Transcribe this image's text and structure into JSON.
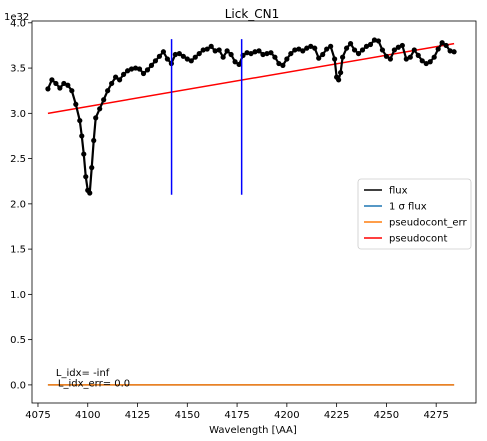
{
  "chart_data": {
    "type": "line",
    "title": "Lick_CN1",
    "xlabel": "Wavelength [\\AA]",
    "ylabel": "",
    "y_scale_label": "1e32",
    "xlim": [
      4072,
      4295
    ],
    "ylim": [
      -0.2,
      4.02
    ],
    "x_ticks": [
      4075,
      4100,
      4125,
      4150,
      4175,
      4200,
      4225,
      4250,
      4275
    ],
    "y_ticks": [
      0.0,
      0.5,
      1.0,
      1.5,
      2.0,
      2.5,
      3.0,
      3.5,
      4.0
    ],
    "x_tick_labels": [
      "4075",
      "4100",
      "4125",
      "4150",
      "4175",
      "4200",
      "4225",
      "4250",
      "4275"
    ],
    "y_tick_labels": [
      "0.0",
      "0.5",
      "1.0",
      "1.5",
      "2.0",
      "2.5",
      "3.0",
      "3.5",
      "4.0"
    ],
    "grid": false,
    "legend_position": "center-right",
    "series": [
      {
        "name": "flux",
        "color": "#000000",
        "style": "line-with-dots",
        "points": [
          [
            4080,
            3.27
          ],
          [
            4082,
            3.37
          ],
          [
            4084,
            3.33
          ],
          [
            4086,
            3.28
          ],
          [
            4088,
            3.33
          ],
          [
            4090,
            3.31
          ],
          [
            4092,
            3.25
          ],
          [
            4094,
            3.1
          ],
          [
            4096,
            2.92
          ],
          [
            4097,
            2.75
          ],
          [
            4098,
            2.55
          ],
          [
            4099,
            2.3
          ],
          [
            4100,
            2.15
          ],
          [
            4101,
            2.12
          ],
          [
            4102,
            2.4
          ],
          [
            4103,
            2.7
          ],
          [
            4104,
            2.95
          ],
          [
            4106,
            3.05
          ],
          [
            4108,
            3.15
          ],
          [
            4110,
            3.25
          ],
          [
            4112,
            3.33
          ],
          [
            4114,
            3.4
          ],
          [
            4116,
            3.37
          ],
          [
            4118,
            3.43
          ],
          [
            4120,
            3.47
          ],
          [
            4122,
            3.49
          ],
          [
            4124,
            3.5
          ],
          [
            4126,
            3.49
          ],
          [
            4128,
            3.44
          ],
          [
            4130,
            3.48
          ],
          [
            4132,
            3.53
          ],
          [
            4134,
            3.58
          ],
          [
            4136,
            3.63
          ],
          [
            4138,
            3.68
          ],
          [
            4140,
            3.6
          ],
          [
            4142,
            3.55
          ],
          [
            4144,
            3.65
          ],
          [
            4146,
            3.66
          ],
          [
            4148,
            3.63
          ],
          [
            4150,
            3.6
          ],
          [
            4152,
            3.58
          ],
          [
            4154,
            3.62
          ],
          [
            4156,
            3.66
          ],
          [
            4158,
            3.7
          ],
          [
            4160,
            3.71
          ],
          [
            4162,
            3.74
          ],
          [
            4164,
            3.69
          ],
          [
            4166,
            3.7
          ],
          [
            4168,
            3.62
          ],
          [
            4170,
            3.69
          ],
          [
            4172,
            3.65
          ],
          [
            4174,
            3.57
          ],
          [
            4176,
            3.54
          ],
          [
            4178,
            3.64
          ],
          [
            4180,
            3.67
          ],
          [
            4182,
            3.66
          ],
          [
            4184,
            3.68
          ],
          [
            4186,
            3.69
          ],
          [
            4188,
            3.65
          ],
          [
            4190,
            3.66
          ],
          [
            4192,
            3.67
          ],
          [
            4194,
            3.62
          ],
          [
            4196,
            3.55
          ],
          [
            4198,
            3.53
          ],
          [
            4200,
            3.6
          ],
          [
            4202,
            3.66
          ],
          [
            4204,
            3.7
          ],
          [
            4206,
            3.71
          ],
          [
            4208,
            3.69
          ],
          [
            4210,
            3.72
          ],
          [
            4212,
            3.74
          ],
          [
            4214,
            3.72
          ],
          [
            4216,
            3.61
          ],
          [
            4218,
            3.65
          ],
          [
            4220,
            3.71
          ],
          [
            4222,
            3.74
          ],
          [
            4224,
            3.6
          ],
          [
            4225,
            3.4
          ],
          [
            4226,
            3.37
          ],
          [
            4227,
            3.45
          ],
          [
            4228,
            3.62
          ],
          [
            4230,
            3.72
          ],
          [
            4232,
            3.77
          ],
          [
            4234,
            3.7
          ],
          [
            4236,
            3.66
          ],
          [
            4238,
            3.7
          ],
          [
            4240,
            3.74
          ],
          [
            4242,
            3.76
          ],
          [
            4244,
            3.81
          ],
          [
            4246,
            3.8
          ],
          [
            4248,
            3.7
          ],
          [
            4250,
            3.63
          ],
          [
            4252,
            3.6
          ],
          [
            4254,
            3.7
          ],
          [
            4256,
            3.73
          ],
          [
            4258,
            3.75
          ],
          [
            4260,
            3.6
          ],
          [
            4262,
            3.62
          ],
          [
            4264,
            3.7
          ],
          [
            4266,
            3.64
          ],
          [
            4268,
            3.58
          ],
          [
            4270,
            3.55
          ],
          [
            4272,
            3.57
          ],
          [
            4274,
            3.62
          ],
          [
            4276,
            3.71
          ],
          [
            4278,
            3.78
          ],
          [
            4280,
            3.75
          ],
          [
            4282,
            3.69
          ],
          [
            4284,
            3.68
          ]
        ]
      },
      {
        "name": "1 σ flux",
        "color": "#1f77b4",
        "style": "line",
        "points": [
          [
            4080,
            0.0
          ],
          [
            4284,
            0.0
          ]
        ]
      },
      {
        "name": "pseudocont_err",
        "color": "#ff7f0e",
        "style": "line",
        "points": [
          [
            4080,
            0.0
          ],
          [
            4284,
            0.0
          ]
        ]
      },
      {
        "name": "pseudocont",
        "color": "#ff0000",
        "style": "line",
        "points": [
          [
            4080,
            3.0
          ],
          [
            4284,
            3.77
          ]
        ]
      }
    ],
    "vertical_lines": [
      {
        "x": 4142.1,
        "y0": 2.1,
        "y1": 3.82,
        "color": "#0000ff"
      },
      {
        "x": 4177.3,
        "y0": 2.1,
        "y1": 3.82,
        "color": "#0000ff"
      }
    ],
    "annotations": [
      {
        "text": "L_idx= -inf",
        "x": 4084,
        "y": 0.1
      },
      {
        "text": "L_idx_err= 0.0",
        "x": 4085,
        "y": -0.02
      }
    ]
  }
}
